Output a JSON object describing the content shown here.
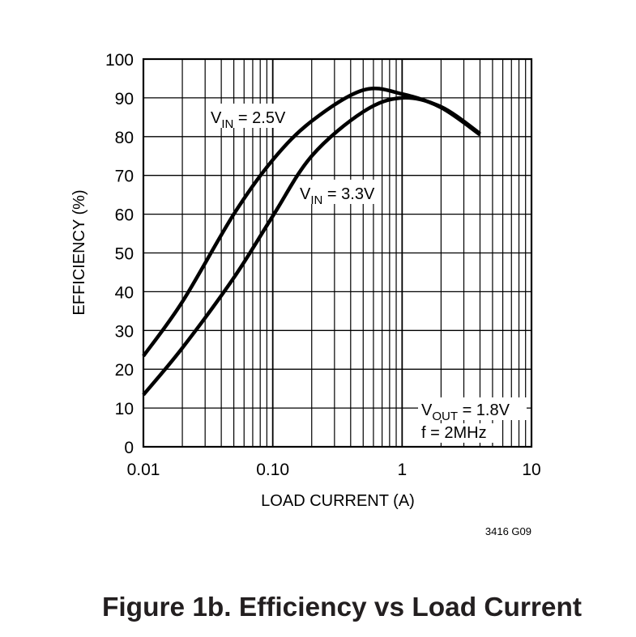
{
  "chart_data": {
    "type": "line",
    "title": "",
    "xlabel": "LOAD CURRENT (A)",
    "ylabel": "EFFICIENCY (%)",
    "xscale": "log",
    "xlim": [
      0.01,
      10
    ],
    "ylim": [
      0,
      100
    ],
    "grid": true,
    "x_tick_labels": [
      "0.01",
      "0.10",
      "1",
      "10"
    ],
    "x_ticks": [
      0.01,
      0.1,
      1,
      10
    ],
    "y_ticks": [
      0,
      10,
      20,
      30,
      40,
      50,
      60,
      70,
      80,
      90,
      100
    ],
    "y_tick_labels": [
      "0",
      "10",
      "20",
      "30",
      "40",
      "50",
      "60",
      "70",
      "80",
      "90",
      "100"
    ],
    "series": [
      {
        "name": "VIN = 2.5V",
        "x": [
          0.01,
          0.02,
          0.05,
          0.1,
          0.2,
          0.5,
          1,
          2,
          4
        ],
        "y": [
          23.4,
          37.4,
          60,
          74,
          84,
          92,
          91,
          87.5,
          80.5
        ]
      },
      {
        "name": "VIN = 3.3V",
        "x": [
          0.01,
          0.02,
          0.05,
          0.1,
          0.2,
          0.5,
          1,
          2,
          4
        ],
        "y": [
          13.4,
          25.5,
          43.6,
          59.5,
          75,
          86.4,
          90,
          87.7,
          80.8
        ]
      }
    ],
    "annotations": [
      {
        "main": "V",
        "sub": "IN",
        "rest": " = 2.5V"
      },
      {
        "main": "V",
        "sub": "IN",
        "rest": " = 3.3V"
      },
      {
        "main": "V",
        "sub": "OUT",
        "rest": " = 1.8V"
      },
      {
        "main": "f = 2MHz",
        "sub": "",
        "rest": ""
      }
    ],
    "line_color": "#000000"
  },
  "figure_code": "3416 G09",
  "caption": "Figure 1b. Efficiency vs Load Current"
}
